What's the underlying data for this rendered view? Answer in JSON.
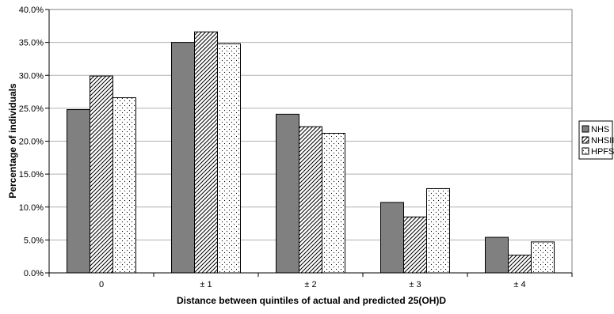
{
  "chart_data": {
    "type": "bar",
    "title": "",
    "xlabel": "Distance between quintiles of actual and predicted 25(OH)D",
    "ylabel": "Percentage of individuals",
    "categories": [
      "0",
      "± 1",
      "± 2",
      "± 3",
      "± 4"
    ],
    "ylim": [
      0,
      40
    ],
    "yticks": [
      "0.0%",
      "5.0%",
      "10.0%",
      "15.0%",
      "20.0%",
      "25.0%",
      "30.0%",
      "35.0%",
      "40.0%"
    ],
    "grid": true,
    "legend_position": "right",
    "series": [
      {
        "name": "NHS",
        "values": [
          24.8,
          35.0,
          24.1,
          10.7,
          5.4
        ],
        "fill": "#808080"
      },
      {
        "name": "NHSII",
        "values": [
          29.9,
          36.6,
          22.2,
          8.5,
          2.7
        ],
        "fill": "hatch"
      },
      {
        "name": "HPFS",
        "values": [
          26.6,
          34.8,
          21.2,
          12.8,
          4.7
        ],
        "fill": "dots"
      }
    ]
  }
}
